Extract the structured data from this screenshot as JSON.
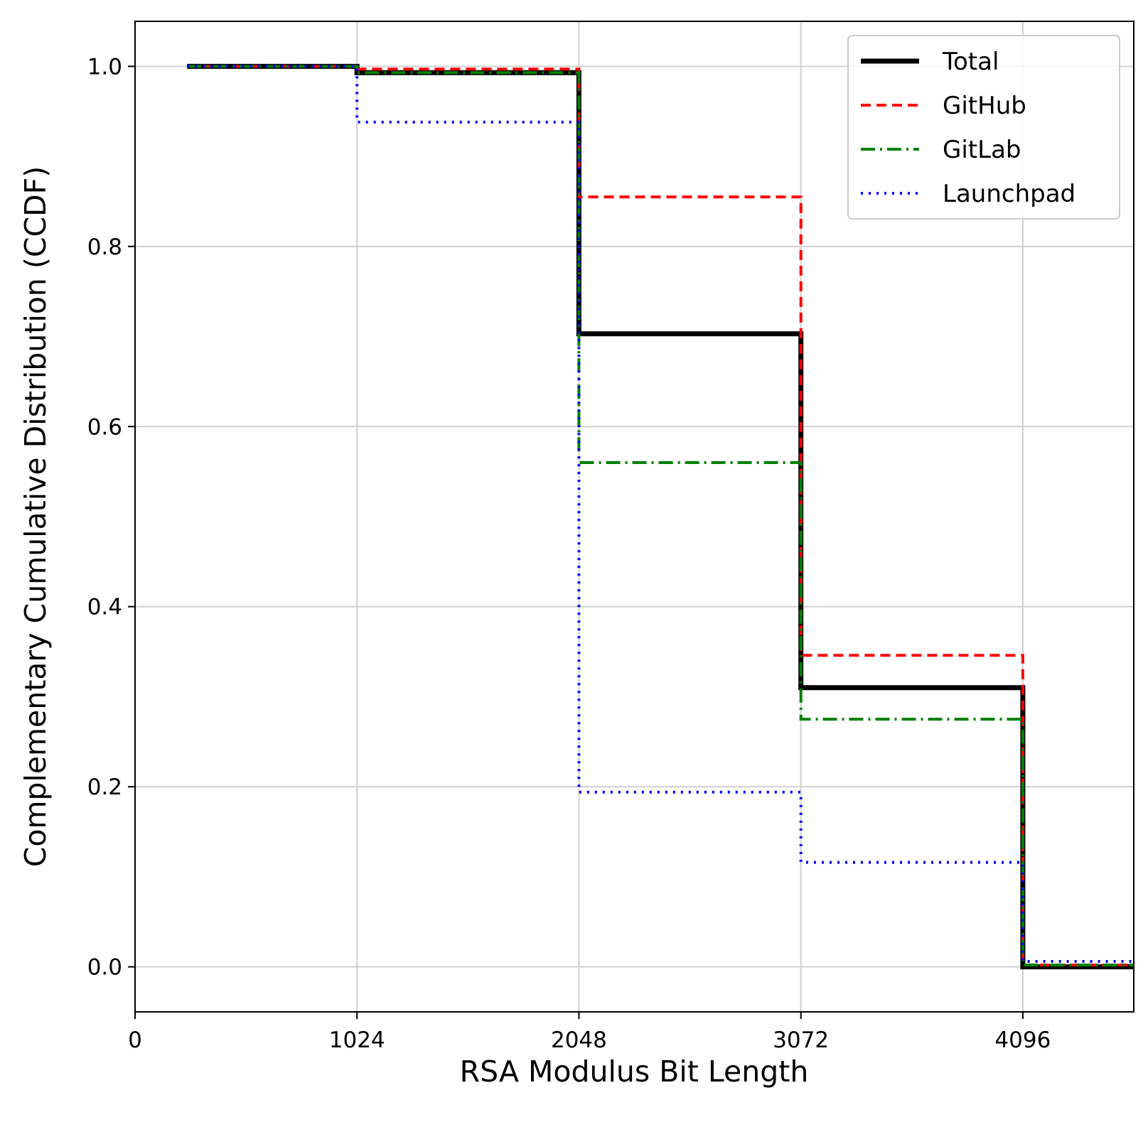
{
  "chart_data": {
    "type": "line",
    "step": true,
    "title": "",
    "xlabel": "RSA Modulus Bit Length",
    "ylabel": "Complementary Cumulative Distribution (CCDF)",
    "xlim": [
      0,
      4608
    ],
    "ylim": [
      -0.05,
      1.05
    ],
    "xticks": [
      0,
      1024,
      2048,
      3072,
      4096
    ],
    "xtick_labels": [
      "0",
      "1024",
      "2048",
      "3072",
      "4096"
    ],
    "yticks": [
      0.0,
      0.2,
      0.4,
      0.6,
      0.8,
      1.0
    ],
    "ytick_labels": [
      "0.0",
      "0.2",
      "0.4",
      "0.6",
      "0.8",
      "1.0"
    ],
    "grid": true,
    "legend_position": "top-right",
    "series": [
      {
        "name": "Total",
        "color": "#000000",
        "style": "solid",
        "x": [
          240,
          1024,
          1024,
          2048,
          2048,
          3072,
          3072,
          4096,
          4096,
          4608
        ],
        "y": [
          1.0,
          1.0,
          0.993,
          0.993,
          0.703,
          0.703,
          0.31,
          0.31,
          0.0,
          0.0
        ]
      },
      {
        "name": "GitHub",
        "color": "#ff0000",
        "style": "dashed",
        "x": [
          240,
          1024,
          1024,
          2048,
          2048,
          3072,
          3072,
          4096,
          4096,
          4608
        ],
        "y": [
          1.0,
          1.0,
          0.997,
          0.997,
          0.855,
          0.855,
          0.346,
          0.346,
          0.002,
          0.002
        ]
      },
      {
        "name": "GitLab",
        "color": "#008000",
        "style": "dashdot",
        "x": [
          240,
          1024,
          1024,
          2048,
          2048,
          3072,
          3072,
          4096,
          4096,
          4608
        ],
        "y": [
          1.0,
          1.0,
          0.993,
          0.993,
          0.56,
          0.56,
          0.275,
          0.275,
          0.002,
          0.002
        ]
      },
      {
        "name": "Launchpad",
        "color": "#0000ff",
        "style": "dotted",
        "x": [
          240,
          1024,
          1024,
          2048,
          2048,
          3072,
          3072,
          4096,
          4096,
          4608
        ],
        "y": [
          1.0,
          1.0,
          0.938,
          0.938,
          0.194,
          0.194,
          0.116,
          0.116,
          0.006,
          0.006
        ]
      }
    ]
  }
}
